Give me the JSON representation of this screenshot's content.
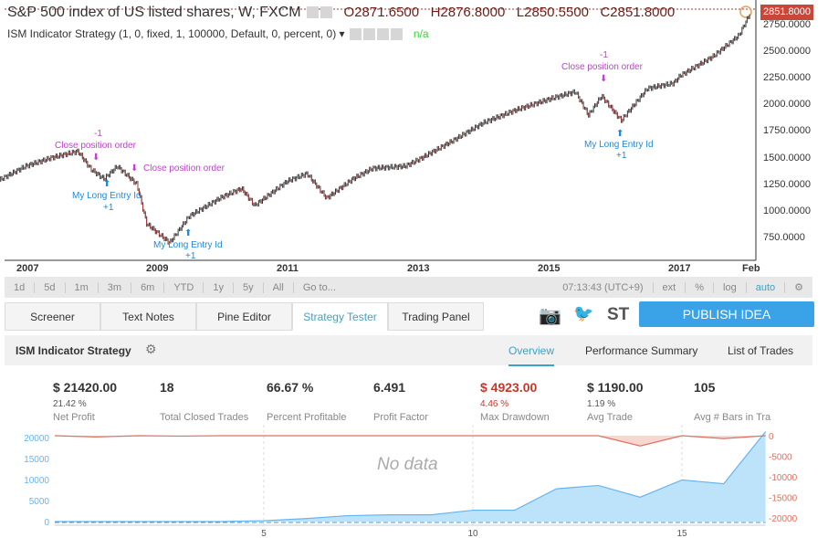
{
  "header": {
    "symbol": "S&P 500 index of US listed shares, W, FXCM",
    "open": "O2871.6500",
    "high": "H2876.8000",
    "low": "L2850.5500",
    "close": "C2851.8000",
    "indicator": "ISM Indicator Strategy (1, 0, fixed, 1, 100000, Default, 0, percent, 0)",
    "indicator_value": "n/a"
  },
  "price_axis": {
    "last": "2851.8000",
    "labels": [
      "2750.0000",
      "2500.0000",
      "2250.0000",
      "2000.0000",
      "1750.0000",
      "1500.0000",
      "1250.0000",
      "1000.0000",
      "750.0000"
    ]
  },
  "time_axis": [
    "2007",
    "2009",
    "2011",
    "2013",
    "2015",
    "2017",
    "Feb"
  ],
  "markers": {
    "close_label": "Close position order",
    "minus": "-1",
    "long_label": "My Long Entry Id",
    "plus": "+1"
  },
  "range_bar": {
    "items": [
      "1d",
      "5d",
      "1m",
      "3m",
      "6m",
      "YTD",
      "1y",
      "5y",
      "All",
      "Go to..."
    ],
    "time": "07:13:43 (UTC+9)",
    "right": [
      "ext",
      "%",
      "log",
      "auto"
    ]
  },
  "tabs": [
    "Screener",
    "Text Notes",
    "Pine Editor",
    "Strategy Tester",
    "Trading Panel"
  ],
  "publish": "PUBLISH IDEA",
  "st": "ST",
  "strategy": {
    "name": "ISM Indicator Strategy",
    "subtabs": [
      "Overview",
      "Performance Summary",
      "List of Trades"
    ]
  },
  "stats": [
    {
      "value": "$ 21420.00",
      "pct": "21.42 %",
      "label": "Net Profit"
    },
    {
      "value": "18",
      "pct": "",
      "label": "Total Closed Trades"
    },
    {
      "value": "66.67 %",
      "pct": "",
      "label": "Percent Profitable"
    },
    {
      "value": "6.491",
      "pct": "",
      "label": "Profit Factor"
    },
    {
      "value": "$ 4923.00",
      "pct": "4.46 %",
      "label": "Max Drawdown",
      "color": "#c0392b"
    },
    {
      "value": "$ 1190.00",
      "pct": "1.19 %",
      "label": "Avg Trade"
    },
    {
      "value": "105",
      "pct": "",
      "label": "Avg # Bars in Tra"
    }
  ],
  "chart_data": {
    "type": "area",
    "no_data": "No data",
    "x_ticks": [
      "5",
      "10",
      "15"
    ],
    "left_ticks": [
      "20000",
      "15000",
      "10000",
      "5000",
      "0"
    ],
    "right_ticks": [
      "0",
      "-5000",
      "-10000",
      "-15000",
      "-20000"
    ],
    "equity": [
      0,
      0,
      0,
      0,
      0,
      200,
      700,
      1400,
      1600,
      1600,
      2700,
      2700,
      7800,
      8600,
      5800,
      9900,
      9000,
      21420
    ],
    "drawdown": [
      0,
      -300,
      0,
      -100,
      0,
      0,
      0,
      0,
      0,
      0,
      0,
      0,
      0,
      0,
      -2500,
      0,
      -700,
      0
    ],
    "colors": {
      "equity": "#64b5f6",
      "drawdown": "#e07060"
    }
  }
}
